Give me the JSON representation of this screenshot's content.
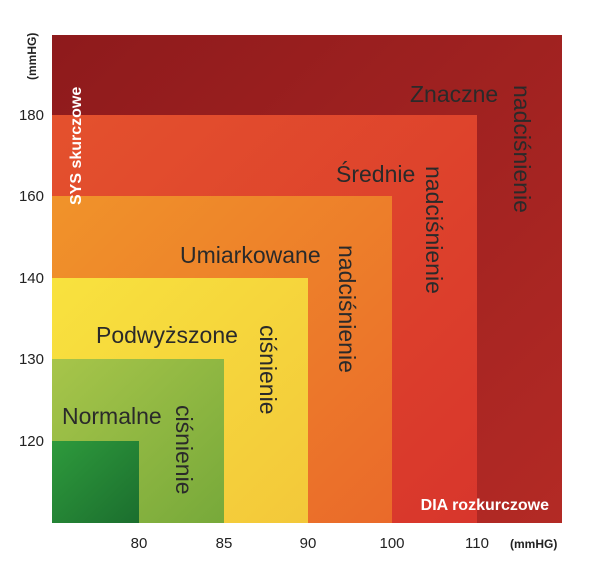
{
  "chart_data": {
    "type": "area",
    "title": "",
    "xlabel": "DIA rozkurczowe",
    "ylabel": "SYS skurczowe",
    "x_unit": "(mmHG)",
    "y_unit": "(mmHG)",
    "x_ticks": [
      80,
      85,
      90,
      100,
      110
    ],
    "y_ticks": [
      120,
      130,
      140,
      160,
      180
    ],
    "xlim": [
      70,
      115
    ],
    "ylim": [
      110,
      190
    ],
    "grid": false,
    "zones": [
      {
        "line1": "Znaczne",
        "line2": "nadciśnienie",
        "x_max": 115,
        "y_max": 190,
        "color": "#9a1e1e"
      },
      {
        "line1": "Średnie",
        "line2": "nadciśnienie",
        "x_max": 110,
        "y_max": 180,
        "color": "#e34a30"
      },
      {
        "line1": "Umiarkowane",
        "line2": "nadciśnienie",
        "x_max": 100,
        "y_max": 160,
        "color": "#f08a2a"
      },
      {
        "line1": "Podwyższone",
        "line2": "ciśnienie",
        "x_max": 90,
        "y_max": 140,
        "color": "#f5dc3a"
      },
      {
        "line1": "Normalne",
        "line2": "ciśnienie",
        "x_max": 85,
        "y_max": 130,
        "color": "#8fbb40"
      },
      {
        "line1": "",
        "line2": "",
        "x_max": 80,
        "y_max": 120,
        "color": "#238a36"
      }
    ]
  }
}
